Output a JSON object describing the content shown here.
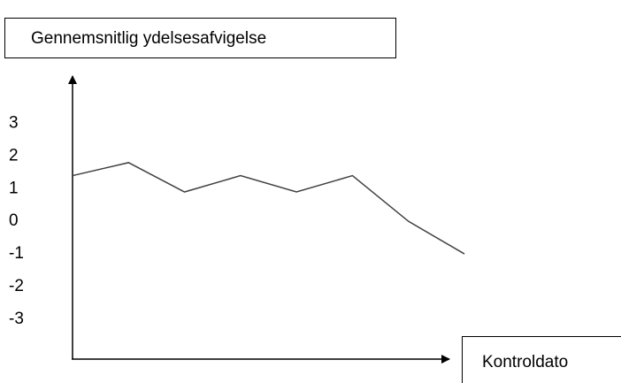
{
  "chart_data": {
    "type": "line",
    "title": "Gennemsnitlig ydelsesafvigelse",
    "x_label": "Kontroldato",
    "categories": [
      null,
      null,
      null,
      null,
      null,
      null,
      null,
      null
    ],
    "values": [
      1.4,
      1.8,
      0.9,
      1.4,
      0.9,
      1.4,
      0,
      -1
    ],
    "color": "#404040",
    "ylim": [
      -4.2,
      4.4
    ],
    "yticks": [
      3,
      2,
      1,
      0,
      -1,
      -2,
      -3
    ],
    "grid": false
  }
}
